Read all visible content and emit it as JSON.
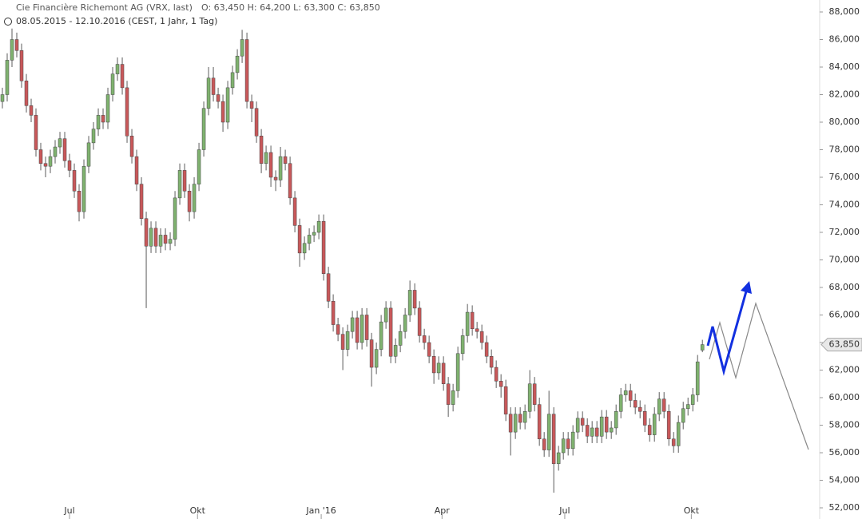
{
  "chart_data": {
    "type": "candlestick",
    "title": "Cie Financière Richemont AG (VRX, last)",
    "ohlc_text": "O: 63,450  H: 64,200  L: 63,300  C: 63,850",
    "subtitle": "08.05.2015 - 12.10.2016 (CEST, 1 Jahr, 1 Tag)",
    "up_color": "#7fb26f",
    "down_color": "#c8585a",
    "xlim": [
      -0.5,
      170.3
    ],
    "xticks": [
      {
        "value": 14,
        "label": "Jul"
      },
      {
        "value": 40.7,
        "label": "Okt"
      },
      {
        "value": 66.5,
        "label": "Jan '16"
      },
      {
        "value": 91.7,
        "label": "Apr"
      },
      {
        "value": 117.3,
        "label": "Jul"
      },
      {
        "value": 143.7,
        "label": "Okt"
      }
    ],
    "ylim": [
      52,
      88
    ],
    "yticks": [
      {
        "value": 52,
        "label": "52,000"
      },
      {
        "value": 54,
        "label": "54,000"
      },
      {
        "value": 56,
        "label": "56,000"
      },
      {
        "value": 58,
        "label": "58,000"
      },
      {
        "value": 60,
        "label": "60,000"
      },
      {
        "value": 62,
        "label": "62,000"
      },
      {
        "value": 64,
        "label": "64,000"
      },
      {
        "value": 66,
        "label": "66,000"
      },
      {
        "value": 68,
        "label": "68,000"
      },
      {
        "value": 70,
        "label": "70,000"
      },
      {
        "value": 72,
        "label": "72,000"
      },
      {
        "value": 74,
        "label": "74,000"
      },
      {
        "value": 76,
        "label": "76,000"
      },
      {
        "value": 78,
        "label": "78,000"
      },
      {
        "value": 80,
        "label": "80,000"
      },
      {
        "value": 82,
        "label": "82,000"
      },
      {
        "value": 84,
        "label": "84,000"
      },
      {
        "value": 86,
        "label": "86,000"
      },
      {
        "value": 88,
        "label": "88,000"
      }
    ],
    "last_price": {
      "value": 63.85,
      "label": "63,850"
    },
    "open": [
      81.5,
      82.0,
      84.5,
      86.0,
      85.2,
      83.0,
      81.2,
      80.5,
      78.0,
      77.0,
      76.8,
      77.5,
      78.2,
      78.8,
      77.2,
      76.5,
      75.0,
      73.5,
      76.8,
      78.5,
      79.5,
      80.5,
      80.0,
      82.0,
      83.5,
      84.2,
      82.5,
      79.0,
      77.5,
      75.5,
      73.0,
      71.0,
      72.3,
      71.0,
      71.8,
      71.2,
      71.5,
      74.5,
      76.5,
      75.0,
      73.5,
      75.5,
      78.0,
      81.0,
      83.2,
      82.0,
      81.5,
      80.0,
      82.5,
      83.6,
      84.8,
      86.0,
      81.5,
      81.0,
      79.0,
      77.0,
      77.8,
      76.0,
      75.8,
      77.5,
      77.0,
      74.5,
      72.5,
      70.5,
      71.2,
      71.8,
      72.0,
      72.8,
      69.0,
      67.0,
      65.3,
      64.6,
      63.5,
      64.8,
      65.8,
      64.0,
      66.0,
      64.2,
      62.2,
      63.5,
      65.5,
      66.5,
      63.0,
      63.8,
      64.8,
      66.0,
      67.8,
      66.5,
      64.5,
      64.0,
      63.0,
      61.8,
      62.5,
      61.0,
      59.5,
      60.5,
      63.2,
      64.5,
      66.2,
      65.0,
      64.8,
      64.0,
      63.0,
      62.2,
      61.2,
      60.8,
      58.8,
      57.5,
      58.8,
      58.2,
      59.0,
      61.0,
      59.5,
      57.0,
      56.2,
      58.8,
      55.2,
      56.0,
      57.0,
      56.3,
      57.5,
      58.5,
      58.0,
      57.2,
      57.8,
      57.2,
      58.6,
      57.5,
      57.8,
      59.0,
      60.2,
      60.5,
      59.8,
      59.3,
      59.0,
      58.0,
      57.3,
      58.8,
      59.9,
      59.0,
      57.0,
      56.5,
      58.2,
      59.2,
      59.5,
      60.2,
      63.45
    ],
    "high": [
      82.5,
      85.0,
      86.8,
      86.5,
      85.7,
      83.5,
      81.7,
      81.0,
      78.5,
      77.5,
      78.0,
      78.7,
      79.3,
      79.3,
      77.7,
      77.0,
      75.5,
      77.3,
      79.0,
      80.0,
      81.0,
      81.0,
      82.5,
      84.0,
      84.7,
      84.7,
      83.0,
      79.5,
      78.0,
      76.0,
      73.5,
      72.8,
      72.8,
      72.3,
      72.3,
      72.0,
      75.0,
      77.0,
      77.0,
      75.5,
      76.0,
      78.5,
      81.5,
      84.0,
      84.0,
      82.5,
      82.0,
      83.0,
      84.1,
      85.3,
      86.7,
      86.5,
      82.0,
      81.5,
      79.5,
      78.3,
      78.3,
      76.5,
      78.2,
      78.0,
      77.5,
      75.0,
      73.0,
      71.7,
      72.3,
      72.5,
      73.3,
      73.3,
      69.5,
      67.5,
      65.8,
      65.1,
      65.3,
      66.3,
      66.3,
      66.5,
      66.5,
      64.7,
      64.0,
      66.0,
      67.0,
      67.0,
      64.3,
      65.3,
      66.5,
      68.5,
      68.3,
      67.0,
      65.0,
      64.5,
      63.5,
      63.0,
      63.0,
      61.5,
      61.0,
      63.7,
      65.0,
      66.8,
      66.7,
      65.5,
      65.3,
      64.5,
      63.5,
      62.7,
      61.7,
      61.3,
      59.3,
      59.3,
      59.3,
      59.5,
      62.0,
      61.5,
      60.0,
      57.5,
      60.5,
      59.3,
      56.5,
      57.5,
      57.5,
      58.0,
      59.0,
      59.0,
      58.5,
      58.3,
      58.3,
      59.1,
      59.1,
      58.3,
      59.5,
      60.7,
      61.0,
      61.0,
      60.3,
      59.8,
      59.5,
      58.5,
      59.3,
      60.4,
      60.4,
      59.5,
      57.5,
      58.7,
      59.7,
      60.0,
      60.7,
      63.1,
      64.2
    ],
    "low": [
      81.0,
      81.5,
      84.0,
      84.7,
      82.5,
      80.7,
      80.0,
      77.5,
      76.5,
      76.0,
      76.3,
      77.0,
      77.7,
      76.7,
      76.0,
      74.5,
      72.8,
      73.0,
      76.3,
      78.0,
      79.0,
      79.5,
      79.5,
      81.5,
      83.0,
      82.0,
      78.5,
      77.0,
      75.0,
      72.5,
      66.5,
      70.5,
      70.5,
      70.5,
      70.7,
      70.7,
      71.0,
      74.0,
      74.5,
      72.8,
      73.0,
      75.0,
      77.5,
      80.5,
      81.5,
      81.0,
      79.3,
      79.5,
      82.0,
      83.1,
      84.3,
      81.0,
      80.0,
      78.5,
      76.3,
      76.5,
      75.3,
      75.0,
      75.3,
      76.5,
      74.0,
      72.0,
      69.5,
      70.0,
      70.7,
      71.3,
      71.5,
      68.5,
      66.5,
      64.8,
      64.1,
      62.0,
      63.0,
      64.3,
      63.5,
      63.5,
      63.7,
      60.8,
      61.7,
      63.0,
      65.0,
      62.5,
      62.5,
      63.3,
      64.3,
      65.5,
      66.0,
      64.0,
      63.5,
      62.5,
      61.0,
      61.3,
      60.5,
      58.6,
      59.0,
      60.0,
      62.7,
      64.0,
      64.5,
      64.3,
      63.5,
      62.5,
      61.7,
      60.7,
      60.0,
      58.3,
      55.8,
      57.0,
      57.7,
      57.7,
      58.5,
      59.0,
      56.5,
      55.7,
      55.7,
      53.1,
      54.7,
      55.5,
      55.8,
      55.8,
      57.0,
      57.5,
      56.7,
      56.7,
      56.7,
      56.7,
      57.0,
      57.0,
      57.3,
      58.5,
      59.7,
      59.3,
      58.8,
      58.5,
      57.5,
      56.8,
      56.8,
      58.3,
      58.5,
      56.5,
      56.0,
      56.0,
      57.7,
      58.7,
      59.0,
      59.7,
      63.3
    ],
    "close": [
      82.0,
      84.5,
      86.0,
      85.2,
      83.0,
      81.2,
      80.5,
      78.0,
      77.0,
      76.8,
      77.5,
      78.2,
      78.8,
      77.2,
      76.5,
      75.0,
      73.5,
      76.8,
      78.5,
      79.5,
      80.5,
      80.0,
      82.0,
      83.5,
      84.2,
      82.5,
      79.0,
      77.5,
      75.5,
      73.0,
      71.0,
      72.3,
      71.0,
      71.8,
      71.2,
      71.5,
      74.5,
      76.5,
      75.0,
      73.5,
      75.5,
      78.0,
      81.0,
      83.2,
      82.0,
      81.5,
      80.0,
      82.5,
      83.6,
      84.8,
      86.0,
      81.5,
      81.0,
      79.0,
      77.0,
      77.8,
      76.0,
      75.8,
      77.5,
      77.0,
      74.5,
      72.5,
      70.5,
      71.2,
      71.8,
      72.0,
      72.8,
      69.0,
      67.0,
      65.3,
      64.6,
      63.5,
      64.8,
      65.8,
      64.0,
      66.0,
      64.2,
      62.2,
      63.5,
      65.5,
      66.5,
      63.0,
      63.8,
      64.8,
      66.0,
      67.8,
      66.5,
      64.5,
      64.0,
      63.0,
      61.8,
      62.5,
      61.0,
      59.5,
      60.5,
      63.2,
      64.5,
      66.2,
      65.0,
      64.8,
      64.0,
      63.0,
      62.2,
      61.2,
      60.8,
      58.8,
      57.5,
      58.8,
      58.2,
      59.0,
      61.0,
      59.5,
      57.0,
      56.2,
      58.8,
      55.2,
      56.0,
      57.0,
      56.3,
      57.5,
      58.5,
      58.0,
      57.2,
      57.8,
      57.2,
      58.6,
      57.5,
      57.8,
      59.0,
      60.2,
      60.5,
      59.8,
      59.3,
      59.0,
      58.0,
      57.3,
      58.8,
      59.9,
      59.0,
      57.0,
      56.5,
      58.2,
      59.2,
      59.5,
      60.2,
      62.6,
      63.85
    ]
  }
}
